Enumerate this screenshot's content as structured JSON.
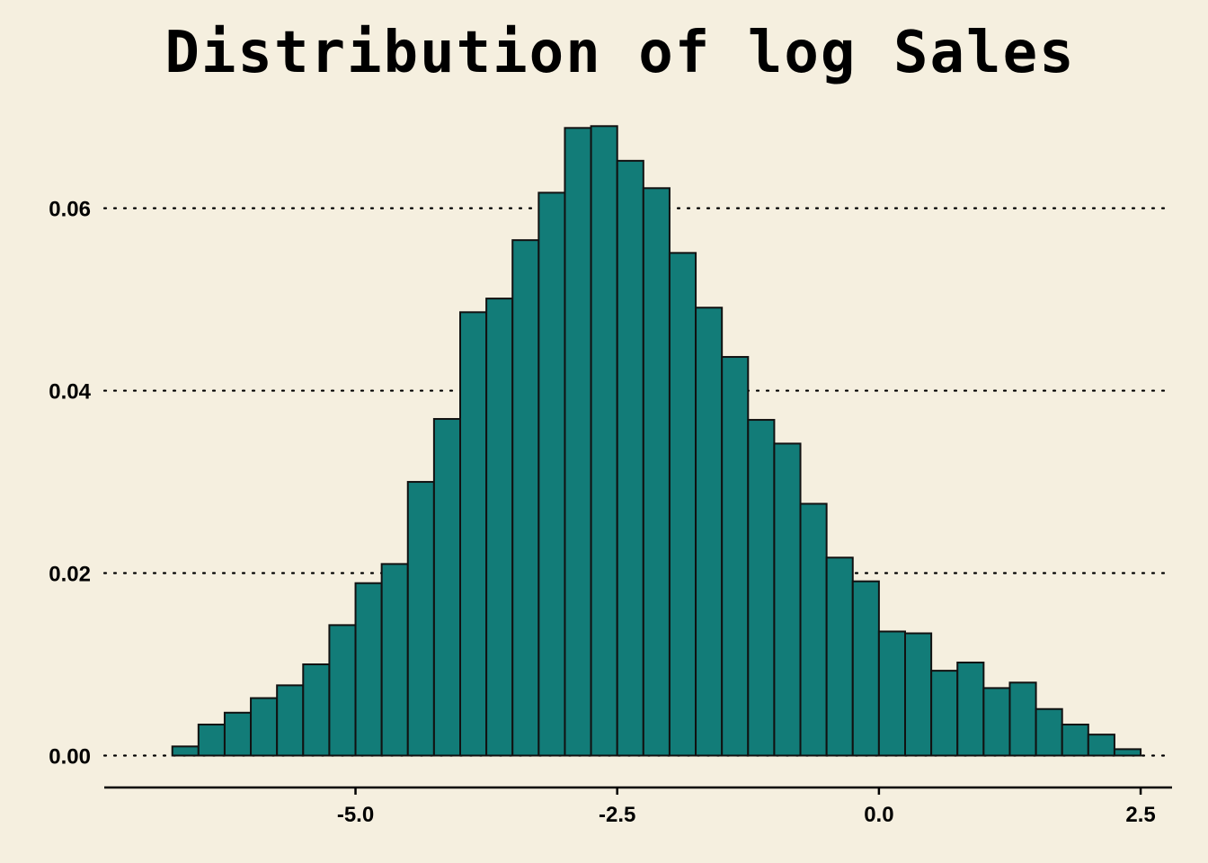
{
  "chart_data": {
    "type": "bar",
    "title": "Distribution of log Sales",
    "xlabel": "",
    "ylabel": "",
    "bin_width": 0.25,
    "bin_start": -6.75,
    "values": [
      0.001,
      0.0034,
      0.0047,
      0.0063,
      0.0077,
      0.01,
      0.0143,
      0.0189,
      0.021,
      0.03,
      0.0369,
      0.0486,
      0.0501,
      0.0565,
      0.0617,
      0.0688,
      0.069,
      0.0652,
      0.0622,
      0.0551,
      0.0491,
      0.0437,
      0.0368,
      0.0342,
      0.0276,
      0.0217,
      0.0191,
      0.0136,
      0.0134,
      0.0093,
      0.0102,
      0.0074,
      0.008,
      0.0051,
      0.0034,
      0.0023,
      0.0007
    ],
    "xlim": [
      -7.4,
      2.8
    ],
    "ylim": [
      -0.0035,
      0.071
    ],
    "x_ticks": [
      -5.0,
      -2.5,
      0.0,
      2.5
    ],
    "x_tick_labels": [
      "-5.0",
      "-2.5",
      "0.0",
      "2.5"
    ],
    "y_ticks": [
      0.0,
      0.02,
      0.04,
      0.06
    ],
    "y_tick_labels": [
      "0.00",
      "0.02",
      "0.04",
      "0.06"
    ],
    "grid": "horizontal dotted",
    "colors": {
      "background": "#f5efdf",
      "bar_fill": "#127c78",
      "bar_edge": "#111111",
      "grid": "#000000"
    }
  }
}
